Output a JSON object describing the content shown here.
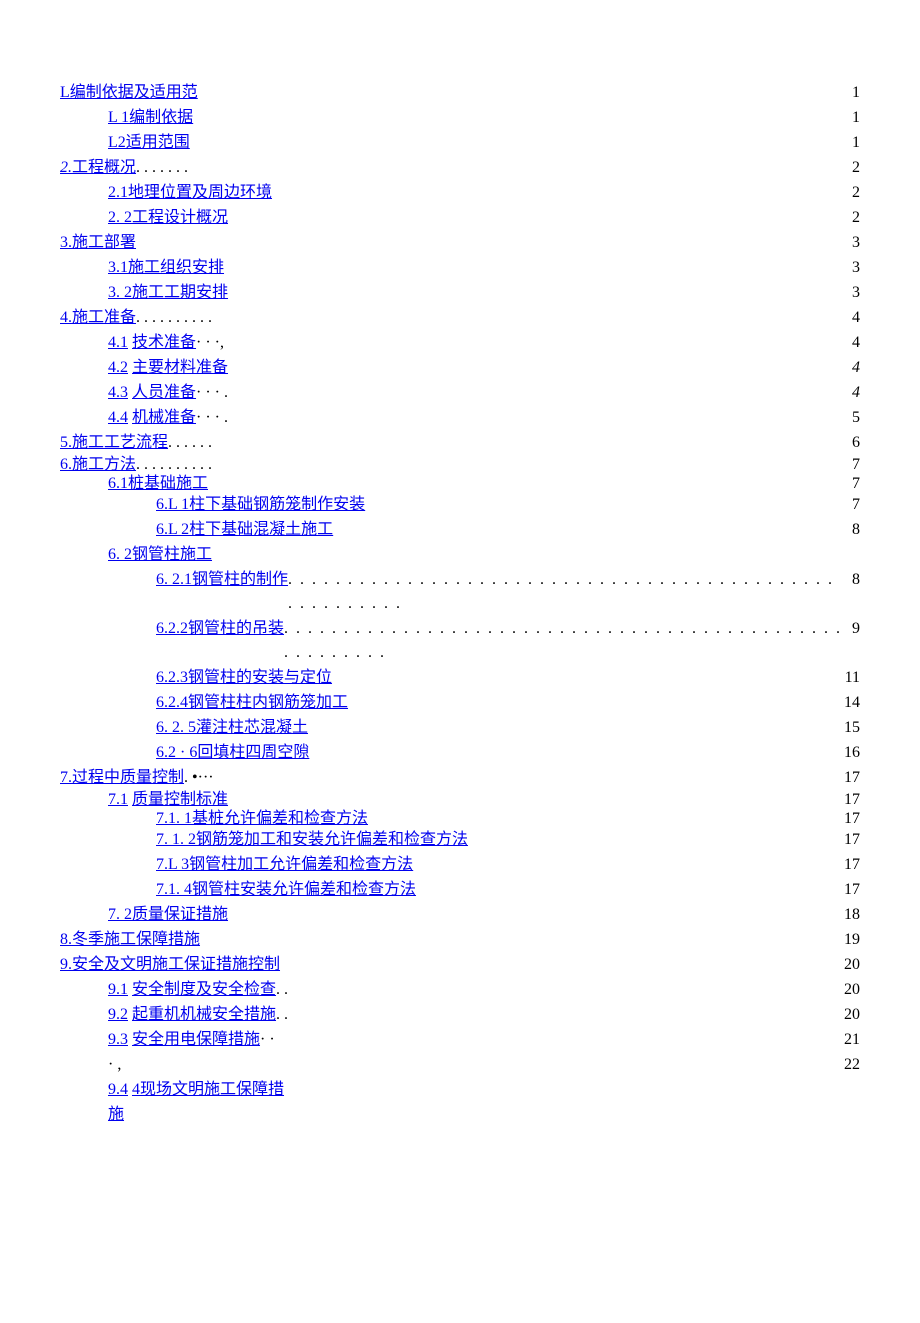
{
  "toc": [
    {
      "num": "L",
      "title": "编制依据及适用范",
      "trail": "",
      "page": "1",
      "indent": 0,
      "linkAll": true
    },
    {
      "num": "L 1",
      "title": "编制依据",
      "trail": "",
      "page": "1",
      "indent": 1,
      "linkAll": true
    },
    {
      "num": "L2",
      "title": "适用范围",
      "trail": "",
      "page": "1",
      "indent": 1,
      "linkAll": true
    },
    {
      "num": "2.",
      "title": "工程概况",
      "trail": ". . . . . . .",
      "page": "2",
      "indent": 0,
      "linkAll": true,
      "numItalic": true
    },
    {
      "num": "2.1",
      "title": "地理位置及周边环境",
      "trail": "",
      "page": "2",
      "indent": 1,
      "linkAll": true
    },
    {
      "num": "2. 2",
      "title": "工程设计概况",
      "trail": "",
      "page": "2",
      "indent": 1,
      "linkAll": true
    },
    {
      "num": "3.",
      "title": "施工部署",
      "trail": "",
      "page": "3",
      "indent": 0,
      "linkAll": false
    },
    {
      "num": "3.1",
      "title": "施工组织安排",
      "trail": "",
      "page": "3",
      "indent": 1,
      "linkAll": true
    },
    {
      "num": "3. 2",
      "title": "施工工期安排",
      "trail": "",
      "page": "3",
      "indent": 1,
      "linkAll": true
    },
    {
      "num": "4.",
      "title": "施工准备",
      "trail": " . . . . . . . . . .",
      "page": "4",
      "indent": 0,
      "linkAll": false
    },
    {
      "num": "4.1",
      "title": "技术准备",
      "trail": " · · ·,",
      "page": "4",
      "indent": 2,
      "numOnly": true
    },
    {
      "num": "4.2",
      "title": "主要材料准备",
      "trail": "",
      "page": "4",
      "indent": 2,
      "numOnly": true,
      "pageItalic": true
    },
    {
      "num": "4.3",
      "title": "人员准备",
      "trail": " · · · .",
      "page": "4",
      "indent": 2,
      "numOnly": true,
      "pageItalic": true
    },
    {
      "num": "4.4",
      "title": "机械准备",
      "trail": " · · · .",
      "page": "5",
      "indent": 2,
      "numOnly": true
    },
    {
      "num": "5.",
      "title": "施工工艺流程",
      "trail": " . . . . . .",
      "page": "6",
      "indent": 0,
      "linkAll": false
    },
    {
      "num": "6.",
      "title": "施工方法",
      "trail": " . . . . . . . . . .",
      "page": "7",
      "indent": 0,
      "linkAll": false,
      "tight": true
    },
    {
      "num": "6.1",
      "title": "桩基础施工",
      "trail": "",
      "page": "7",
      "indent": 1,
      "linkAll": true,
      "tight": true
    },
    {
      "num": "6.L 1",
      "title": "柱下基础钢筋笼制作安装",
      "trail": "",
      "page": "7",
      "indent": 3,
      "linkAll": true
    },
    {
      "num": "6.L 2",
      "title": "柱下基础混凝土施工",
      "trail": "",
      "page": "8",
      "indent": 3,
      "linkAll": true
    },
    {
      "num": "6. 2",
      "title": "钢管柱施工",
      "trail": "",
      "page": "",
      "indent": 1,
      "linkAll": true
    },
    {
      "num": "6. 2.1",
      "title": "钢管柱的制作",
      "trail": "",
      "page": "8",
      "indent": 3,
      "linkAll": false,
      "fillDots": true
    },
    {
      "num": "6.2.2",
      "title": "钢管柱的吊装",
      "trail": "",
      "page": "9",
      "indent": 3,
      "linkAll": false,
      "fillDots": true
    },
    {
      "num": "6.2.3",
      "title": "钢管柱的安装与定位",
      "trail": "",
      "page": "11",
      "indent": 3,
      "linkAll": true
    },
    {
      "num": "6.2.4",
      "title": "钢管柱柱内钢筋笼加工",
      "trail": "",
      "page": "14",
      "indent": 3,
      "linkAll": true
    },
    {
      "num": "6. 2. 5",
      "title": "灌注柱芯混凝土",
      "trail": "",
      "page": "15",
      "indent": 3,
      "linkAll": true
    },
    {
      "num": "6.2 · 6",
      "title": "回填柱四周空隙",
      "trail": "",
      "page": "16",
      "indent": 3,
      "linkAll": true
    },
    {
      "num": "7.",
      "title": "过程中质量控制",
      "trail": ". •···",
      "page": "17",
      "indent": 0,
      "linkAll": false
    },
    {
      "num": "7.1",
      "title": "质量控制标准",
      "trail": "",
      "page": "17",
      "indent": 2,
      "numOnly": true,
      "tight": true
    },
    {
      "num": "7.1. 1",
      "title": "基桩允许偏差和检查方法",
      "trail": "",
      "page": "17",
      "indent": 3,
      "linkAll": true,
      "tight": true
    },
    {
      "num": "7. 1. 2",
      "title": "钢筋笼加工和安装允许偏差和检查方法",
      "trail": "",
      "page": "17",
      "indent": 3,
      "linkAll": true
    },
    {
      "num": "7.L 3",
      "title": "钢管柱加工允许偏差和检查方法",
      "trail": "",
      "page": "17",
      "indent": 3,
      "linkAll": true
    },
    {
      "num": "7.1. 4",
      "title": "钢管柱安装允许偏差和检查方法",
      "trail": "",
      "page": "17",
      "indent": 3,
      "linkAll": true
    },
    {
      "num": "7. 2",
      "title": "质量保证措施",
      "trail": "",
      "page": "18",
      "indent": 1,
      "linkAll": true
    },
    {
      "num": "8.",
      "title": "冬季施工保障措施",
      "trail": "",
      "page": "19",
      "indent": 0,
      "linkAll": false
    },
    {
      "num": "9.",
      "title": "安全及文明施工保证措施控制",
      "trail": "",
      "page": "20",
      "indent": 0,
      "linkAll": false
    },
    {
      "num": "9.1",
      "title": "安全制度及安全检查",
      "trail": ". .",
      "page": "20",
      "indent": 2,
      "numOnly": true
    },
    {
      "num": "9.2",
      "title": "起重机机械安全措施",
      "trail": ". .",
      "page": "20",
      "indent": 2,
      "numOnly": true
    },
    {
      "num": "9.3",
      "title": "安全用电保障措施",
      "trail": " · ·",
      "page": "21",
      "indent": 2,
      "numOnly": true
    },
    {
      "num": "",
      "title": "· ,",
      "trail": "",
      "page": "22",
      "indent": 2,
      "plain": true
    },
    {
      "num": "9.4",
      "title": "4现场文明施工保障措",
      "trail": "",
      "page": "",
      "indent": 2,
      "numOnly": true
    },
    {
      "num": "",
      "title": "施",
      "trail": "",
      "page": "",
      "indent": 2,
      "linkTextOnly": true
    }
  ],
  "colors": {
    "link": "#0000ee",
    "text": "#000000",
    "background": "#ffffff"
  }
}
